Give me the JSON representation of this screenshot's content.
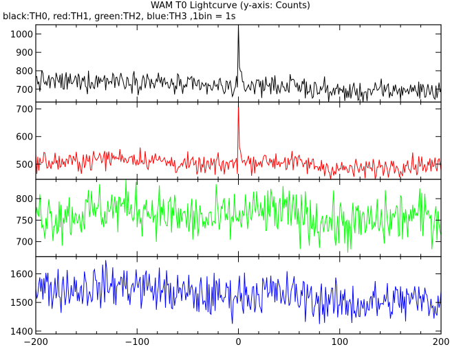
{
  "chart_data": {
    "type": "line",
    "title": "WAM T0 Lightcurve (y-axis: Counts)",
    "subtitle": "black:TH0, red:TH1, green:TH2, blue:TH3 ,1bin = 1s",
    "xlabel": "",
    "ylabel": "",
    "xlim": [
      -200,
      200
    ],
    "x_ticks": [
      -200,
      -100,
      0,
      100,
      200
    ],
    "grid": false,
    "legend": "none",
    "panels": [
      {
        "color": "#000000",
        "ylim": [
          630,
          1050
        ],
        "y_ticks": [
          700,
          800,
          900,
          1000
        ],
        "baseline_start": 755,
        "baseline_end": 680,
        "noise": 28,
        "spike": {
          "x": 0,
          "peak": 1050,
          "decay_to": 820
        }
      },
      {
        "color": "#ff0000",
        "ylim": [
          445,
          725
        ],
        "y_ticks": [
          500,
          600,
          700
        ],
        "baseline_start": 520,
        "baseline_end": 485,
        "noise": 18,
        "spike": {
          "x": 0,
          "peak": 725,
          "decay_to": 560
        }
      },
      {
        "color": "#00ff00",
        "ylim": [
          665,
          845
        ],
        "y_ticks": [
          700,
          750,
          800
        ],
        "baseline_start": 775,
        "baseline_end": 745,
        "noise": 30
      },
      {
        "color": "#0000ff",
        "ylim": [
          1390,
          1660
        ],
        "y_ticks": [
          1400,
          1500,
          1600
        ],
        "baseline_start": 1565,
        "baseline_end": 1490,
        "noise": 38
      }
    ]
  }
}
